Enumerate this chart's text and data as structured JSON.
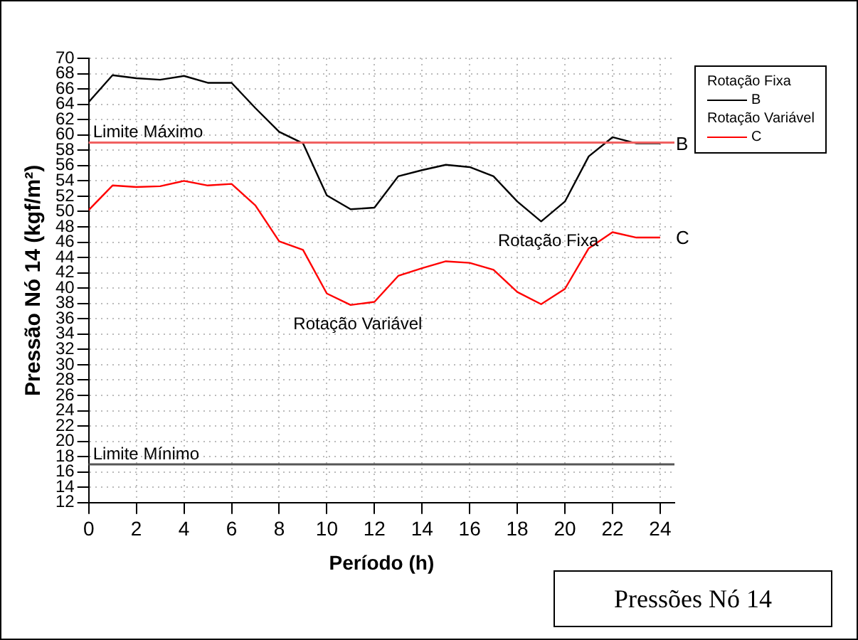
{
  "chart_data": {
    "type": "line",
    "title": "Pressões Nó 14",
    "xlabel": "Período (h)",
    "ylabel": "Pressão Nó 14 (kgf/m²)",
    "x": [
      0,
      1,
      2,
      3,
      4,
      5,
      6,
      7,
      8,
      9,
      10,
      11,
      12,
      13,
      14,
      15,
      16,
      17,
      18,
      19,
      20,
      21,
      22,
      23,
      24
    ],
    "series": [
      {
        "name": "B",
        "color": "#000000",
        "values": [
          64.3,
          67.8,
          67.4,
          67.2,
          67.7,
          66.8,
          66.8,
          63.5,
          60.4,
          58.9,
          52.1,
          50.3,
          50.5,
          54.6,
          55.4,
          56.1,
          55.8,
          54.6,
          51.3,
          48.7,
          51.3,
          57.2,
          59.7,
          58.9,
          58.9
        ]
      },
      {
        "name": "C",
        "color": "#ff0000",
        "values": [
          50.2,
          53.4,
          53.2,
          53.3,
          54.0,
          53.4,
          53.6,
          50.8,
          46.1,
          45.0,
          39.3,
          37.8,
          38.2,
          41.6,
          42.6,
          43.5,
          43.3,
          42.4,
          39.5,
          37.9,
          39.9,
          45.2,
          47.3,
          46.6,
          46.6
        ]
      }
    ],
    "annotations": [
      "Rotação Fixa",
      "Rotação Variável",
      "Rotação Fixa",
      "Rotação Variável"
    ],
    "ref_lines": [
      {
        "axis": "y",
        "value": 59,
        "label": "Limite Máximo",
        "color": "#f06060"
      },
      {
        "axis": "y",
        "value": 17,
        "label": "Limite Mínimo",
        "color": "#555555"
      }
    ],
    "xlim": [
      0,
      24.6
    ],
    "xticks": [
      0,
      2,
      4,
      6,
      8,
      10,
      12,
      14,
      16,
      18,
      20,
      22,
      24
    ],
    "ylim": [
      12,
      70
    ],
    "yticks": [
      12,
      14,
      16,
      18,
      20,
      22,
      24,
      26,
      28,
      30,
      32,
      34,
      36,
      38,
      40,
      42,
      44,
      46,
      48,
      50,
      52,
      54,
      56,
      58,
      60,
      62,
      64,
      66,
      68,
      70
    ],
    "grid": true,
    "legend": "top right",
    "marker": "none",
    "line_style": "solid"
  }
}
